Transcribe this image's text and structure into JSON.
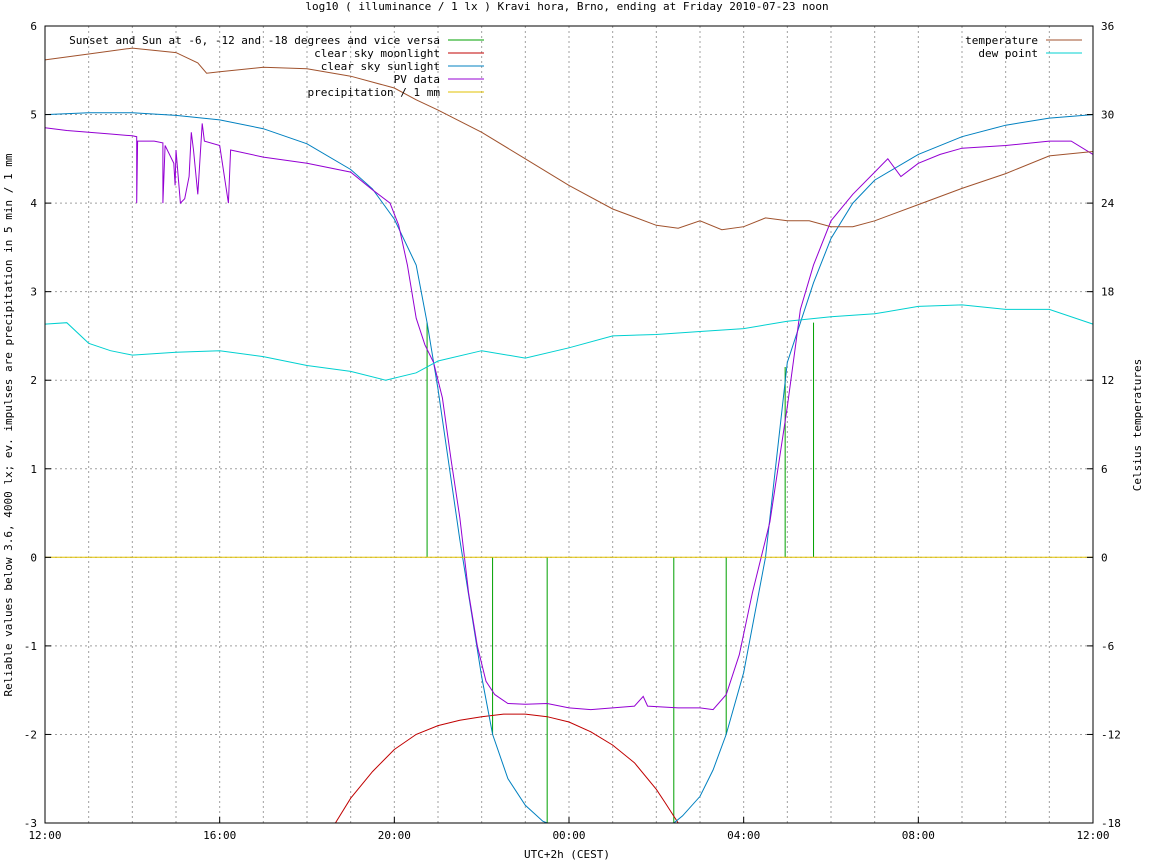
{
  "chart_data": {
    "type": "line",
    "title": "log10 ( illuminance / 1 lx ) Kravi hora, Brno, ending at Friday 2010-07-23 noon",
    "xlabel": "UTC+2h (CEST)",
    "ylabel": "Reliable values below 3.6, 4000 lx; ev. impulses are precipitation in 5 min / 1 mm",
    "y2label": "Celsius temperatures",
    "x_unit_note": "hours since 12:00 on the left edge of the time axis",
    "xlim": [
      0,
      24
    ],
    "ylim": [
      -3,
      6
    ],
    "y2lim": [
      -18,
      36
    ],
    "x_ticks": [
      {
        "x": 0,
        "label": "12:00"
      },
      {
        "x": 4,
        "label": "16:00"
      },
      {
        "x": 8,
        "label": "20:00"
      },
      {
        "x": 12,
        "label": "00:00"
      },
      {
        "x": 16,
        "label": "04:00"
      },
      {
        "x": 20,
        "label": "08:00"
      },
      {
        "x": 24,
        "label": "12:00"
      }
    ],
    "y_ticks": [
      "-3",
      "-2",
      "-1",
      "0",
      "1",
      "2",
      "3",
      "4",
      "5",
      "6"
    ],
    "y2_ticks": [
      "-18",
      "-12",
      "-6",
      "0",
      "6",
      "12",
      "18",
      "24",
      "30",
      "36"
    ],
    "grid": true,
    "legend_left": [
      {
        "name": "Sunset and Sun at -6, -12 and -18 degrees and vice versa",
        "color": "#00a000"
      },
      {
        "name": "clear sky moonlight",
        "color": "#c00000"
      },
      {
        "name": "clear sky sunlight",
        "color": "#0080c0"
      },
      {
        "name": "PV data",
        "color": "#9400d3"
      },
      {
        "name": "precipitation / 1 mm",
        "color": "#e0c000"
      }
    ],
    "legend_right": [
      {
        "name": "temperature",
        "color": "#a0522d"
      },
      {
        "name": "dew point",
        "color": "#00d0d0"
      }
    ],
    "series": [
      {
        "name": "Sunset and Sun at -6, -12 and -18 degrees and vice versa",
        "type": "impulse",
        "axis": "y",
        "color": "#00a000",
        "points": [
          [
            8.75,
            2.65
          ],
          [
            10.25,
            -2.0
          ],
          [
            11.5,
            -3.0
          ],
          [
            14.4,
            -3.0
          ],
          [
            15.6,
            -2.0
          ],
          [
            16.95,
            2.15
          ],
          [
            17.6,
            2.65
          ]
        ]
      },
      {
        "name": "clear sky moonlight",
        "type": "line",
        "axis": "y",
        "color": "#c00000",
        "points": [
          [
            6.65,
            -3.0
          ],
          [
            7.0,
            -2.72
          ],
          [
            7.5,
            -2.42
          ],
          [
            8.0,
            -2.17
          ],
          [
            8.5,
            -2.0
          ],
          [
            9.0,
            -1.9
          ],
          [
            9.5,
            -1.84
          ],
          [
            10.0,
            -1.8
          ],
          [
            10.5,
            -1.77
          ],
          [
            11.0,
            -1.77
          ],
          [
            11.5,
            -1.8
          ],
          [
            12.0,
            -1.86
          ],
          [
            12.5,
            -1.97
          ],
          [
            13.0,
            -2.12
          ],
          [
            13.5,
            -2.32
          ],
          [
            14.0,
            -2.62
          ],
          [
            14.2,
            -2.77
          ],
          [
            14.5,
            -3.0
          ]
        ]
      },
      {
        "name": "clear sky sunlight",
        "type": "line",
        "axis": "y",
        "color": "#0080c0",
        "points": [
          [
            0.0,
            5.0
          ],
          [
            1.0,
            5.02
          ],
          [
            2.0,
            5.02
          ],
          [
            3.0,
            4.99
          ],
          [
            4.0,
            4.94
          ],
          [
            5.0,
            4.84
          ],
          [
            6.0,
            4.67
          ],
          [
            7.0,
            4.38
          ],
          [
            7.5,
            4.16
          ],
          [
            8.0,
            3.82
          ],
          [
            8.5,
            3.3
          ],
          [
            8.75,
            2.65
          ],
          [
            9.0,
            1.9
          ],
          [
            9.5,
            0.2
          ],
          [
            10.0,
            -1.35
          ],
          [
            10.25,
            -2.0
          ],
          [
            10.6,
            -2.5
          ],
          [
            11.0,
            -2.8
          ],
          [
            11.4,
            -2.98
          ],
          [
            11.5,
            -3.0
          ],
          [
            14.4,
            -3.0
          ],
          [
            14.6,
            -2.92
          ],
          [
            15.0,
            -2.7
          ],
          [
            15.3,
            -2.4
          ],
          [
            15.6,
            -2.0
          ],
          [
            16.0,
            -1.3
          ],
          [
            16.5,
            0.0
          ],
          [
            17.0,
            2.2
          ],
          [
            17.6,
            3.1
          ],
          [
            18.0,
            3.6
          ],
          [
            18.5,
            4.0
          ],
          [
            19.0,
            4.26
          ],
          [
            20.0,
            4.55
          ],
          [
            21.0,
            4.75
          ],
          [
            22.0,
            4.88
          ],
          [
            23.0,
            4.96
          ],
          [
            24.0,
            5.0
          ]
        ]
      },
      {
        "name": "PV data",
        "type": "line",
        "axis": "y",
        "color": "#9400d3",
        "points": [
          [
            0.0,
            4.85
          ],
          [
            0.5,
            4.82
          ],
          [
            1.0,
            4.8
          ],
          [
            1.5,
            4.78
          ],
          [
            2.0,
            4.76
          ],
          [
            2.1,
            4.75
          ],
          [
            2.1,
            4.0
          ],
          [
            2.12,
            4.7
          ],
          [
            2.5,
            4.7
          ],
          [
            2.7,
            4.68
          ],
          [
            2.7,
            4.0
          ],
          [
            2.75,
            4.65
          ],
          [
            2.95,
            4.45
          ],
          [
            2.98,
            4.2
          ],
          [
            3.0,
            4.6
          ],
          [
            3.1,
            4.0
          ],
          [
            3.2,
            4.05
          ],
          [
            3.3,
            4.3
          ],
          [
            3.35,
            4.8
          ],
          [
            3.4,
            4.6
          ],
          [
            3.5,
            4.1
          ],
          [
            3.6,
            4.9
          ],
          [
            3.65,
            4.7
          ],
          [
            4.0,
            4.65
          ],
          [
            4.2,
            4.0
          ],
          [
            4.25,
            4.6
          ],
          [
            5.0,
            4.52
          ],
          [
            6.0,
            4.45
          ],
          [
            7.0,
            4.35
          ],
          [
            7.5,
            4.15
          ],
          [
            7.9,
            4.0
          ],
          [
            8.1,
            3.75
          ],
          [
            8.3,
            3.3
          ],
          [
            8.5,
            2.7
          ],
          [
            8.7,
            2.4
          ],
          [
            8.9,
            2.2
          ],
          [
            9.1,
            1.8
          ],
          [
            9.3,
            1.1
          ],
          [
            9.5,
            0.45
          ],
          [
            9.7,
            -0.4
          ],
          [
            9.9,
            -1.0
          ],
          [
            10.1,
            -1.4
          ],
          [
            10.3,
            -1.55
          ],
          [
            10.6,
            -1.65
          ],
          [
            11.0,
            -1.66
          ],
          [
            11.5,
            -1.65
          ],
          [
            12.0,
            -1.7
          ],
          [
            12.5,
            -1.72
          ],
          [
            13.0,
            -1.7
          ],
          [
            13.5,
            -1.68
          ],
          [
            13.7,
            -1.57
          ],
          [
            13.8,
            -1.68
          ],
          [
            14.5,
            -1.7
          ],
          [
            15.0,
            -1.7
          ],
          [
            15.3,
            -1.72
          ],
          [
            15.6,
            -1.55
          ],
          [
            15.9,
            -1.1
          ],
          [
            16.2,
            -0.4
          ],
          [
            16.6,
            0.4
          ],
          [
            17.0,
            1.7
          ],
          [
            17.3,
            2.8
          ],
          [
            17.6,
            3.3
          ],
          [
            18.0,
            3.8
          ],
          [
            18.5,
            4.1
          ],
          [
            19.0,
            4.35
          ],
          [
            19.3,
            4.5
          ],
          [
            19.6,
            4.3
          ],
          [
            20.0,
            4.45
          ],
          [
            20.5,
            4.55
          ],
          [
            21.0,
            4.62
          ],
          [
            22.0,
            4.65
          ],
          [
            23.0,
            4.7
          ],
          [
            23.5,
            4.7
          ],
          [
            24.0,
            4.55
          ]
        ]
      },
      {
        "name": "precipitation / 1 mm",
        "type": "line",
        "axis": "y",
        "color": "#e0c000",
        "points": [
          [
            0.0,
            0.0
          ],
          [
            24.0,
            0.0
          ]
        ]
      },
      {
        "name": "temperature",
        "type": "line",
        "axis": "y2",
        "color": "#a0522d",
        "points": [
          [
            0.0,
            33.7
          ],
          [
            1.0,
            34.1
          ],
          [
            2.0,
            34.5
          ],
          [
            3.0,
            34.2
          ],
          [
            3.5,
            33.5
          ],
          [
            3.7,
            32.8
          ],
          [
            4.0,
            32.9
          ],
          [
            5.0,
            33.2
          ],
          [
            6.0,
            33.1
          ],
          [
            7.0,
            32.6
          ],
          [
            8.0,
            31.8
          ],
          [
            8.5,
            31.0
          ],
          [
            9.0,
            30.3
          ],
          [
            10.0,
            28.8
          ],
          [
            11.0,
            27.0
          ],
          [
            12.0,
            25.2
          ],
          [
            13.0,
            23.6
          ],
          [
            14.0,
            22.5
          ],
          [
            14.5,
            22.3
          ],
          [
            15.0,
            22.8
          ],
          [
            15.5,
            22.2
          ],
          [
            16.0,
            22.4
          ],
          [
            16.5,
            23.0
          ],
          [
            17.0,
            22.8
          ],
          [
            17.5,
            22.8
          ],
          [
            18.0,
            22.4
          ],
          [
            18.5,
            22.4
          ],
          [
            19.0,
            22.8
          ],
          [
            20.0,
            23.9
          ],
          [
            21.0,
            25.0
          ],
          [
            22.0,
            26.0
          ],
          [
            23.0,
            27.2
          ],
          [
            24.0,
            27.5
          ]
        ]
      },
      {
        "name": "dew point",
        "type": "line",
        "axis": "y2",
        "color": "#00d0d0",
        "points": [
          [
            0.0,
            15.8
          ],
          [
            0.5,
            15.9
          ],
          [
            1.0,
            14.5
          ],
          [
            1.5,
            14.0
          ],
          [
            2.0,
            13.7
          ],
          [
            3.0,
            13.9
          ],
          [
            4.0,
            14.0
          ],
          [
            5.0,
            13.6
          ],
          [
            6.0,
            13.0
          ],
          [
            7.0,
            12.6
          ],
          [
            7.8,
            12.0
          ],
          [
            8.5,
            12.5
          ],
          [
            9.0,
            13.3
          ],
          [
            10.0,
            14.0
          ],
          [
            11.0,
            13.5
          ],
          [
            12.0,
            14.2
          ],
          [
            13.0,
            15.0
          ],
          [
            14.0,
            15.1
          ],
          [
            15.0,
            15.3
          ],
          [
            16.0,
            15.5
          ],
          [
            17.0,
            16.0
          ],
          [
            18.0,
            16.3
          ],
          [
            19.0,
            16.5
          ],
          [
            20.0,
            17.0
          ],
          [
            21.0,
            17.1
          ],
          [
            22.0,
            16.8
          ],
          [
            23.0,
            16.8
          ],
          [
            24.0,
            15.8
          ]
        ]
      }
    ]
  }
}
